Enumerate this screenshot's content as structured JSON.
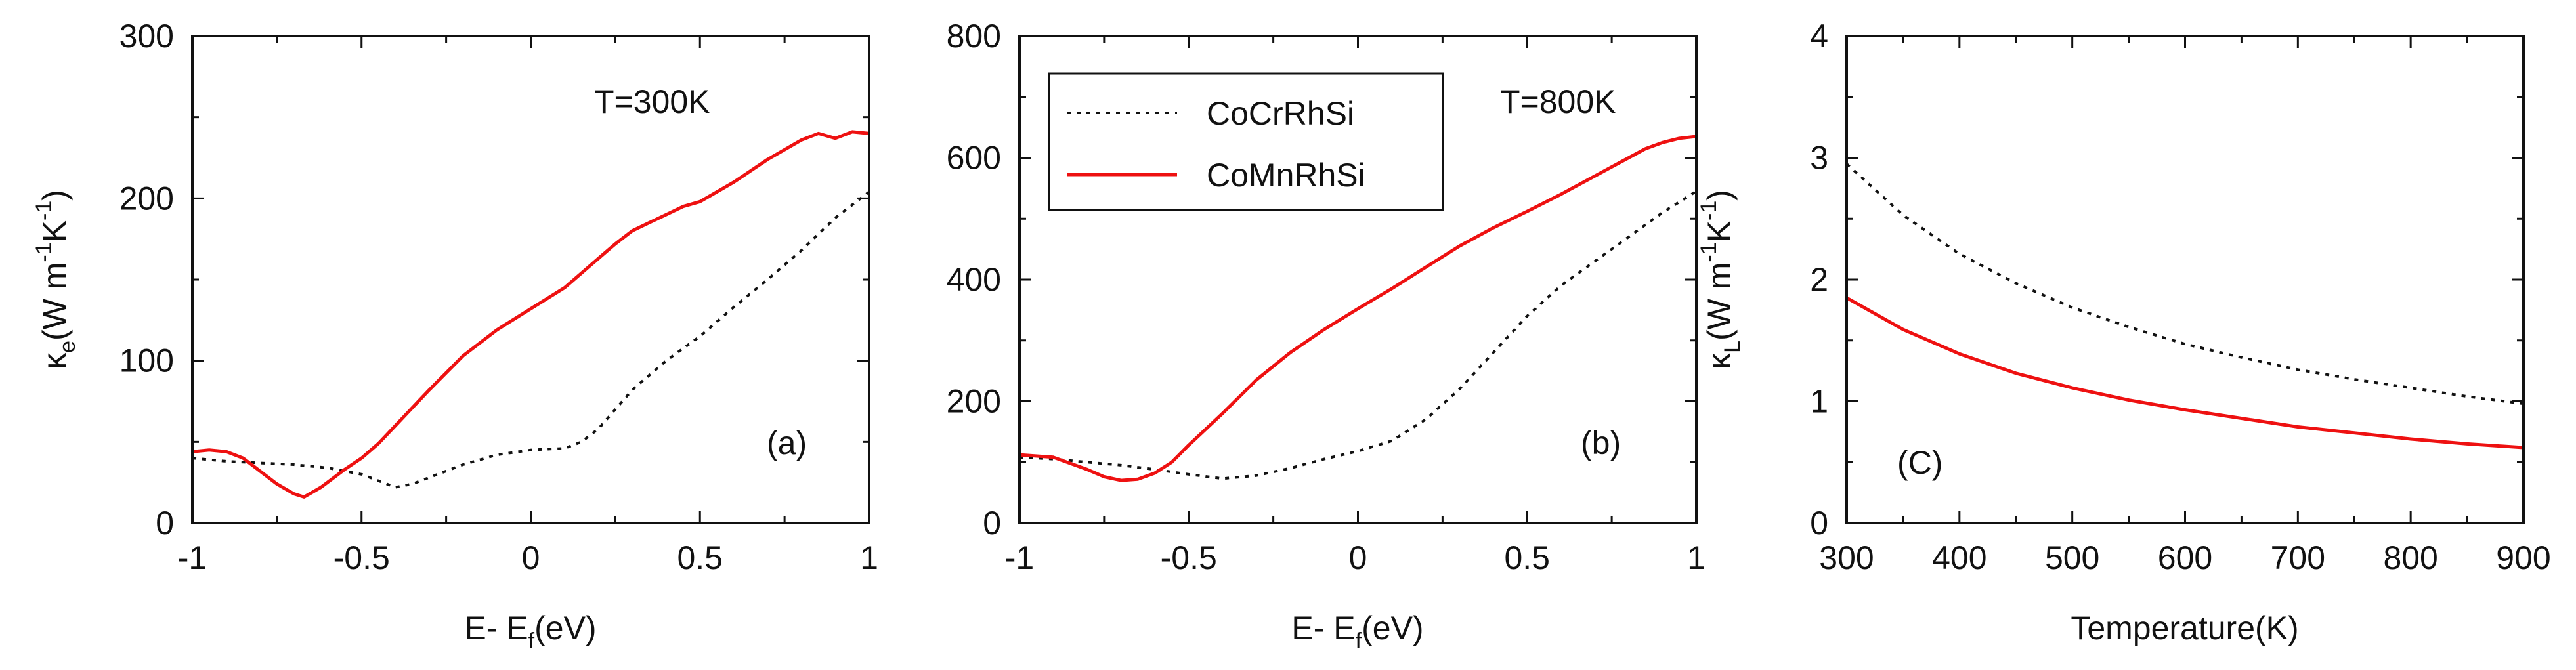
{
  "colors": {
    "cocrrhsi": "#111111",
    "comnrhsi": "#ee1111",
    "frame": "#111111"
  },
  "legend": {
    "entries": [
      {
        "name": "CoCrRhSi",
        "style": "dotted",
        "color": "#111111"
      },
      {
        "name": "CoMnRhSi",
        "style": "solid",
        "color": "#ee1111"
      }
    ]
  },
  "chart_data": [
    {
      "type": "line",
      "panel_label": "(a)",
      "annotation": "T=300K",
      "xlabel_main": "E- E",
      "xlabel_sub": "f",
      "xlabel_tail": "(eV)",
      "ylabel": "κe(W m-1K-1)",
      "ylabel_parts": {
        "sym": "κ",
        "sub": "e",
        "open": "(W m",
        "sup1": "-1",
        "mid": "K",
        "sup2": "-1",
        "close": ")"
      },
      "xlim": [
        -1,
        1
      ],
      "ylim": [
        0,
        300
      ],
      "xticks": [
        -1,
        -0.5,
        0,
        0.5,
        1
      ],
      "xtick_labels": [
        "-1",
        "-0.5",
        "0",
        "0.5",
        "1"
      ],
      "yticks": [
        0,
        100,
        200,
        300
      ],
      "ytick_labels": [
        "0",
        "100",
        "200",
        "300"
      ],
      "series": [
        {
          "name": "CoCrRhSi",
          "style": "dotted",
          "x": [
            -1,
            -0.9,
            -0.8,
            -0.7,
            -0.6,
            -0.5,
            -0.45,
            -0.4,
            -0.35,
            -0.3,
            -0.2,
            -0.1,
            0,
            0.1,
            0.15,
            0.2,
            0.3,
            0.4,
            0.5,
            0.6,
            0.7,
            0.8,
            0.9,
            1.0
          ],
          "y": [
            40,
            38,
            37,
            36,
            34,
            30,
            26,
            22,
            24,
            28,
            36,
            42,
            45,
            46,
            50,
            58,
            82,
            100,
            115,
            133,
            150,
            168,
            188,
            204
          ]
        },
        {
          "name": "CoMnRhSi",
          "style": "solid",
          "x": [
            -1,
            -0.95,
            -0.9,
            -0.85,
            -0.8,
            -0.75,
            -0.7,
            -0.67,
            -0.62,
            -0.55,
            -0.5,
            -0.45,
            -0.4,
            -0.3,
            -0.2,
            -0.1,
            0,
            0.1,
            0.2,
            0.25,
            0.3,
            0.35,
            0.4,
            0.45,
            0.5,
            0.6,
            0.7,
            0.8,
            0.85,
            0.9,
            0.95,
            1.0
          ],
          "y": [
            44,
            45,
            44,
            40,
            32,
            24,
            18,
            16,
            22,
            33,
            40,
            49,
            60,
            82,
            103,
            119,
            132,
            145,
            163,
            172,
            180,
            185,
            190,
            195,
            198,
            210,
            224,
            236,
            240,
            237,
            241,
            240
          ]
        }
      ]
    },
    {
      "type": "line",
      "panel_label": "(b)",
      "annotation": "T=800K",
      "xlabel_main": "E- E",
      "xlabel_sub": "f",
      "xlabel_tail": "(eV)",
      "ylabel": "",
      "xlim": [
        -1,
        1
      ],
      "ylim": [
        0,
        800
      ],
      "xticks": [
        -1,
        -0.5,
        0,
        0.5,
        1
      ],
      "xtick_labels": [
        "-1",
        "-0.5",
        "0",
        "0.5",
        "1"
      ],
      "yticks": [
        0,
        200,
        400,
        600,
        800
      ],
      "ytick_labels": [
        "0",
        "200",
        "400",
        "600",
        "800"
      ],
      "series": [
        {
          "name": "CoCrRhSi",
          "style": "dotted",
          "x": [
            -1,
            -0.9,
            -0.8,
            -0.7,
            -0.6,
            -0.5,
            -0.4,
            -0.3,
            -0.2,
            -0.1,
            0,
            0.1,
            0.2,
            0.3,
            0.4,
            0.5,
            0.6,
            0.7,
            0.8,
            0.9,
            1.0
          ],
          "y": [
            108,
            105,
            100,
            95,
            88,
            80,
            73,
            78,
            90,
            105,
            118,
            135,
            170,
            220,
            280,
            340,
            390,
            430,
            470,
            510,
            545
          ]
        },
        {
          "name": "CoMnRhSi",
          "style": "solid",
          "x": [
            -1,
            -0.9,
            -0.8,
            -0.75,
            -0.7,
            -0.65,
            -0.6,
            -0.55,
            -0.5,
            -0.4,
            -0.3,
            -0.2,
            -0.1,
            0,
            0.1,
            0.2,
            0.3,
            0.4,
            0.5,
            0.6,
            0.7,
            0.8,
            0.85,
            0.9,
            0.95,
            1.0
          ],
          "y": [
            112,
            108,
            88,
            76,
            70,
            72,
            82,
            100,
            128,
            180,
            235,
            280,
            318,
            352,
            385,
            420,
            455,
            485,
            512,
            540,
            570,
            600,
            615,
            625,
            632,
            635
          ]
        }
      ]
    },
    {
      "type": "line",
      "panel_label": "(C)",
      "annotation": "",
      "xlabel_main": "Temperature(K)",
      "xlabel_sub": "",
      "xlabel_tail": "",
      "ylabel": "κL(W m-1K-1)",
      "ylabel_parts": {
        "sym": "κ",
        "sub": "L",
        "open": "(W m",
        "sup1": "-1",
        "mid": "K",
        "sup2": "-1",
        "close": ")"
      },
      "xlim": [
        300,
        900
      ],
      "ylim": [
        0,
        4
      ],
      "xticks": [
        300,
        400,
        500,
        600,
        700,
        800,
        900
      ],
      "xtick_labels": [
        "300",
        "400",
        "500",
        "600",
        "700",
        "800",
        "900"
      ],
      "yticks": [
        0,
        1,
        2,
        3,
        4
      ],
      "ytick_labels": [
        "0",
        "1",
        "2",
        "3",
        "4"
      ],
      "series": [
        {
          "name": "CoCrRhSi",
          "style": "dotted",
          "x": [
            300,
            350,
            400,
            450,
            500,
            550,
            600,
            650,
            700,
            750,
            800,
            850,
            900
          ],
          "y": [
            2.95,
            2.53,
            2.21,
            1.97,
            1.77,
            1.61,
            1.47,
            1.36,
            1.26,
            1.18,
            1.11,
            1.04,
            0.98
          ]
        },
        {
          "name": "CoMnRhSi",
          "style": "solid",
          "x": [
            300,
            350,
            400,
            450,
            500,
            550,
            600,
            650,
            700,
            750,
            800,
            850,
            900
          ],
          "y": [
            1.85,
            1.59,
            1.39,
            1.23,
            1.11,
            1.01,
            0.93,
            0.86,
            0.79,
            0.74,
            0.69,
            0.65,
            0.62
          ]
        }
      ]
    }
  ]
}
